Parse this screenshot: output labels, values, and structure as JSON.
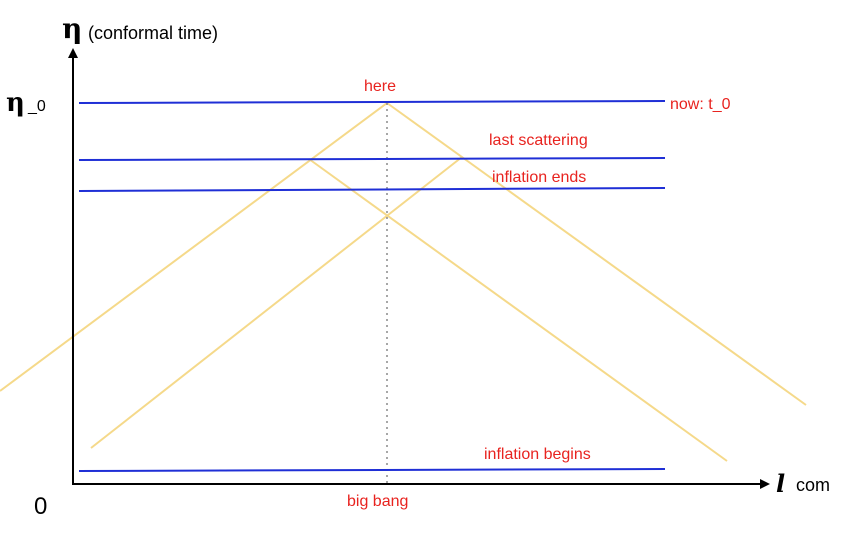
{
  "axes": {
    "y_symbol": "η",
    "y_label": "(conformal time)",
    "y_tick_symbol": "η",
    "y_tick_sub": "_0",
    "origin": "0",
    "x_symbol": "l",
    "x_label": "com"
  },
  "lines": {
    "now": "now: t_0",
    "last_scattering": "last scattering",
    "inflation_ends": "inflation ends",
    "inflation_begins": "inflation begins"
  },
  "points": {
    "here": "here",
    "big_bang": "big bang"
  },
  "colors": {
    "time_slice": "#1f2fd6",
    "light_cone": "#f5d98a",
    "label": "#e8231f",
    "axis": "#000000",
    "worldline": "#8a8a8a"
  }
}
